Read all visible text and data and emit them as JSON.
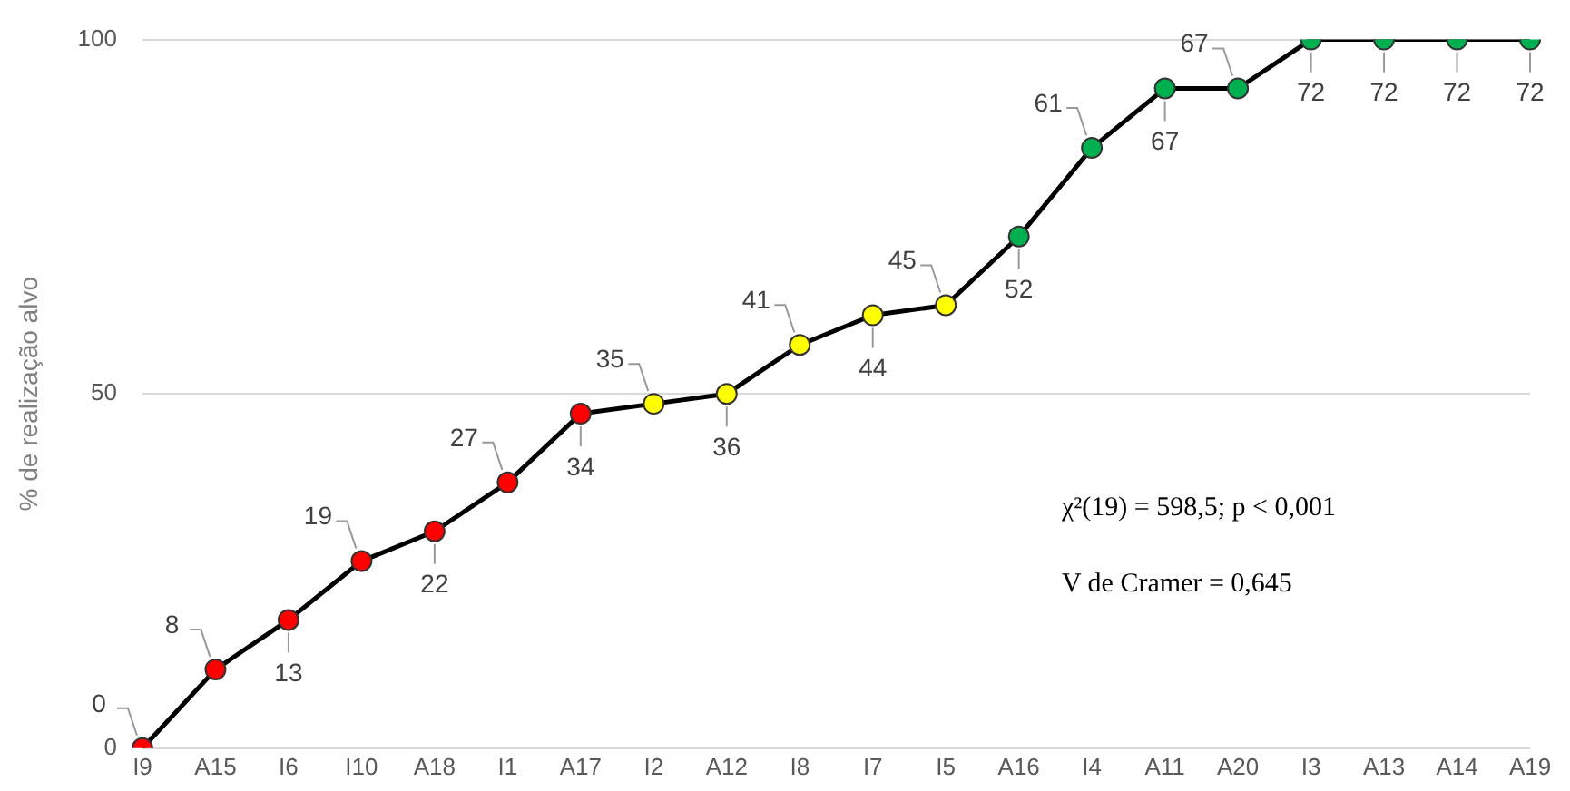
{
  "chart_data": {
    "type": "line",
    "ylabel": "% de realização alvo",
    "categories": [
      "I9",
      "A15",
      "I6",
      "I10",
      "A18",
      "I1",
      "A17",
      "I2",
      "A12",
      "I8",
      "I7",
      "I5",
      "A16",
      "I4",
      "A11",
      "A20",
      "I3",
      "A13",
      "A14",
      "A19"
    ],
    "series": [
      {
        "color": "#000000",
        "values": [
          0,
          11.1,
          18.1,
          26.4,
          30.6,
          37.5,
          47.2,
          48.6,
          50,
          56.9,
          61.1,
          62.5,
          72.2,
          84.7,
          93.1,
          93.1,
          100,
          100,
          100,
          100
        ],
        "colors": [
          "#ff0000",
          "#ff0000",
          "#ff0000",
          "#ff0000",
          "#ff0000",
          "#ff0000",
          "#ff0000",
          "#ffff00",
          "#ffff00",
          "#ffff00",
          "#ffff00",
          "#ffff00",
          "#00b050",
          "#00b050",
          "#00b050",
          "#00b050",
          "#00b050",
          "#00b050",
          "#00b050",
          "#00b050"
        ]
      }
    ],
    "ylim": [
      0,
      100
    ],
    "yticks": [
      0,
      50,
      100
    ],
    "grid": "y",
    "marker": "circle",
    "line_style": "solid",
    "annotations": [
      "χ²(19) = 598,5;  p < 0,001",
      "V de Cramer = 0,645",
      {
        "text": "0",
        "x": "I9",
        "y": 0
      },
      {
        "text": "8",
        "x": "A15",
        "y": 11.1
      },
      {
        "text": "13",
        "x": "I6",
        "y": 18.1
      },
      {
        "text": "19",
        "x": "I10",
        "y": 26.4
      },
      {
        "text": "22",
        "x": "A18",
        "y": 30.6
      },
      {
        "text": "27",
        "x": "I1",
        "y": 37.5
      },
      {
        "text": "34",
        "x": "A17",
        "y": 47.2
      },
      {
        "text": "35",
        "x": "I2",
        "y": 48.6
      },
      {
        "text": "36",
        "x": "A12",
        "y": 50
      },
      {
        "text": "41",
        "x": "I8",
        "y": 56.9
      },
      {
        "text": "44",
        "x": "I7",
        "y": 61.1
      },
      {
        "text": "45",
        "x": "I5",
        "y": 62.5
      },
      {
        "text": "52",
        "x": "A16",
        "y": 72.2
      },
      {
        "text": "61",
        "x": "I4",
        "y": 84.7
      },
      {
        "text": "67",
        "x": "A11",
        "y": 93.1
      },
      {
        "text": "67",
        "x": "A20",
        "y": 93.1
      },
      {
        "text": "72",
        "x": "I3",
        "y": 100
      },
      {
        "text": "72",
        "x": "A13",
        "y": 100
      },
      {
        "text": "72",
        "x": "A14",
        "y": 100
      },
      {
        "text": "72",
        "x": "A19",
        "y": 100
      }
    ]
  }
}
